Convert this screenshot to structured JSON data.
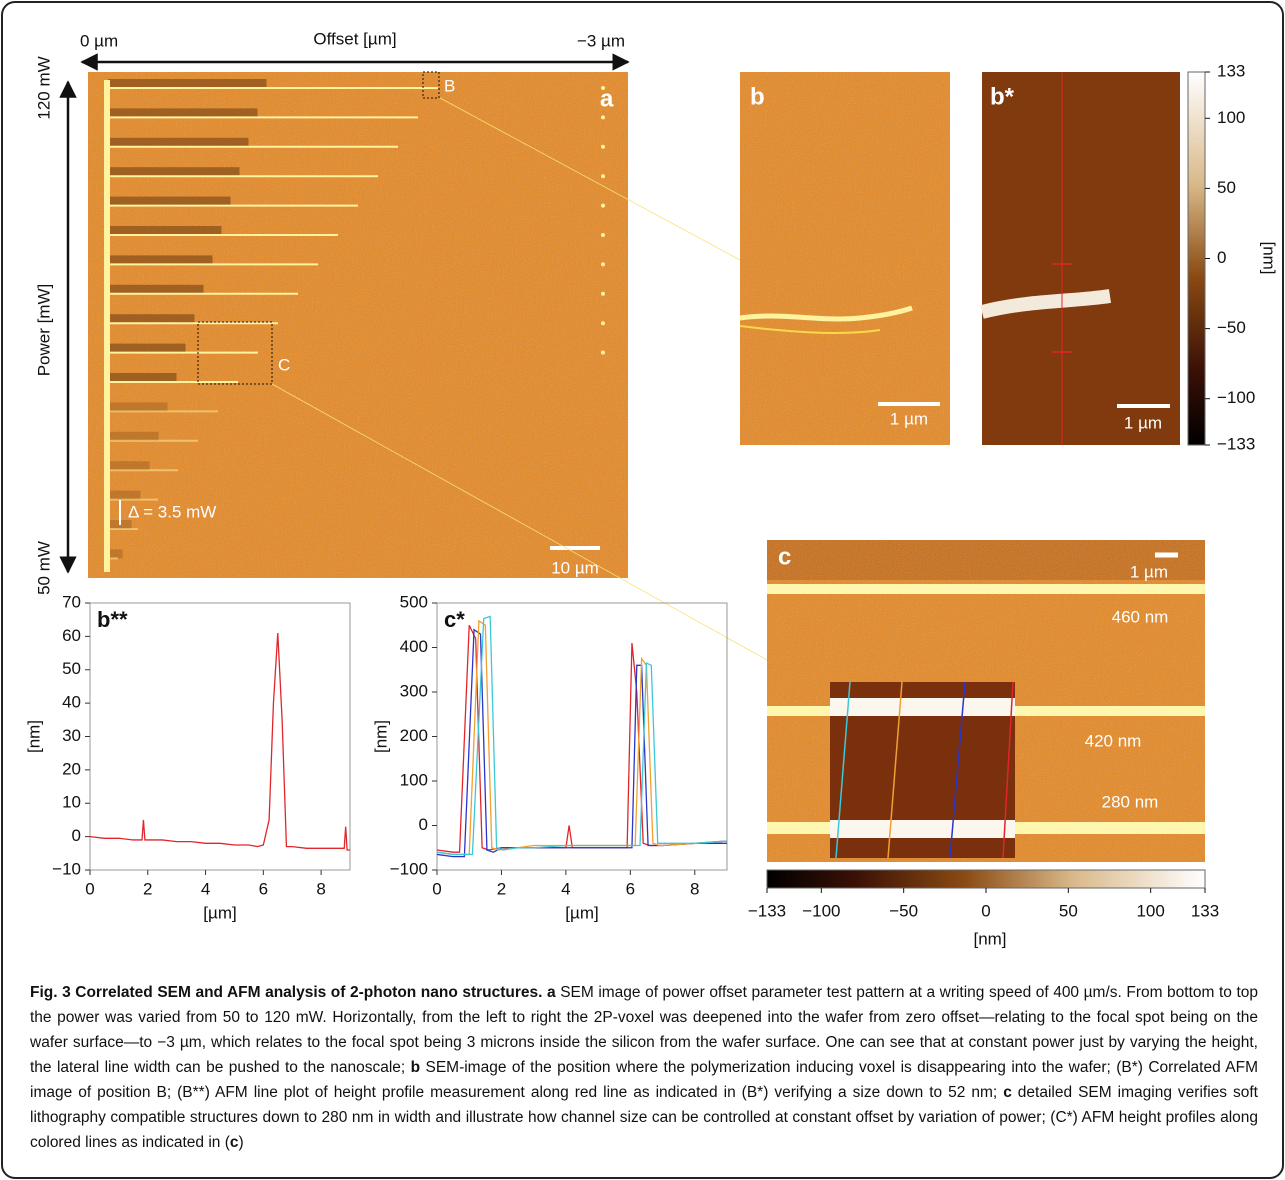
{
  "panel_a": {
    "label": "a",
    "offset_title": "Offset [µm]",
    "offset_start": "0 µm",
    "offset_end": "−3 µm",
    "power_title": "Power [mW]",
    "power_top": "120 mW",
    "power_bottom": "50 mW",
    "delta": "Δ = 3.5 mW",
    "box_b": "B",
    "box_c": "C",
    "scale_bar": "10 µm"
  },
  "panel_b": {
    "label": "b",
    "scale_bar": "1 µm"
  },
  "panel_b_star": {
    "label": "b*",
    "scale_bar": "1 µm",
    "colorbar": {
      "unit": "[nm]",
      "lim": [
        -133,
        133
      ],
      "ticks": [
        133,
        100,
        50,
        0,
        {
          "value": -50,
          "label": "−50"
        },
        {
          "value": -100,
          "label": "−100"
        },
        {
          "value": -133,
          "label": "−133"
        }
      ]
    }
  },
  "panel_c": {
    "label": "c",
    "scale_bar": "1 µm",
    "widths": [
      "460 nm",
      "420 nm",
      "280 nm"
    ],
    "colorbar": {
      "unit": "[nm]",
      "lim": [
        -133,
        133
      ],
      "ticks": [
        {
          "value": -133,
          "label": "−133"
        },
        {
          "value": -100,
          "label": "−100"
        },
        {
          "value": -50,
          "label": "−50"
        },
        0,
        50,
        100,
        133
      ]
    }
  },
  "chart_data": [
    {
      "type": "line",
      "label": "b**",
      "xlabel": "[µm]",
      "ylabel": "[nm]",
      "xlim": [
        0,
        9
      ],
      "ylim": [
        -10,
        70
      ],
      "xticks": [
        0,
        2,
        4,
        6,
        8
      ],
      "yticks": [
        {
          "value": -10,
          "label": "−10"
        },
        0,
        10,
        20,
        30,
        40,
        50,
        60,
        70
      ],
      "series": [
        {
          "color": "#e0262b",
          "x": [
            0,
            0.5,
            1,
            1.5,
            1.8,
            1.85,
            1.9,
            2.5,
            3,
            3.5,
            4,
            4.5,
            5,
            5.5,
            5.8,
            6.0,
            6.2,
            6.35,
            6.5,
            6.65,
            6.8,
            7,
            7.5,
            8,
            8.5,
            8.8,
            8.85,
            8.9,
            9
          ],
          "values": [
            0,
            -0.5,
            -0.5,
            -1,
            -1,
            5,
            -1,
            -1,
            -1.5,
            -1.5,
            -2,
            -2,
            -2.5,
            -2.5,
            -3,
            -2.5,
            5,
            40,
            61,
            35,
            -3,
            -3,
            -3.5,
            -3.5,
            -3.5,
            -3.5,
            3,
            -4,
            -4
          ]
        }
      ]
    },
    {
      "type": "line",
      "label": "c*",
      "xlabel": "[µm]",
      "ylabel": "[nm]",
      "xlim": [
        0,
        9
      ],
      "ylim": [
        -100,
        500
      ],
      "xticks": [
        0,
        2,
        4,
        6,
        8
      ],
      "yticks": [
        {
          "value": -100,
          "label": "−100"
        },
        0,
        100,
        200,
        300,
        400,
        500
      ],
      "series": [
        {
          "color": "#e0262b",
          "x": [
            0,
            0.5,
            0.7,
            1.0,
            1.2,
            1.4,
            1.6,
            2,
            3,
            4,
            4.1,
            4.2,
            5,
            5.9,
            6.05,
            6.2,
            6.4,
            6.6,
            7,
            8,
            9
          ],
          "values": [
            -55,
            -60,
            -60,
            450,
            420,
            -50,
            -55,
            -50,
            -50,
            -50,
            0,
            -50,
            -50,
            -50,
            410,
            300,
            -40,
            -45,
            -45,
            -40,
            -35
          ]
        },
        {
          "color": "#2b35c9",
          "x": [
            0,
            0.5,
            0.85,
            1.15,
            1.35,
            1.55,
            1.75,
            2,
            3,
            4,
            5,
            6.05,
            6.2,
            6.35,
            6.55,
            6.75,
            7,
            8,
            9
          ],
          "values": [
            -65,
            -70,
            -70,
            440,
            430,
            -55,
            -60,
            -50,
            -50,
            -50,
            -50,
            -50,
            360,
            360,
            -45,
            -45,
            -45,
            -40,
            -40
          ]
        },
        {
          "color": "#f0a030",
          "x": [
            0,
            0.5,
            1.0,
            1.3,
            1.5,
            1.7,
            1.9,
            2.5,
            3,
            4,
            5,
            6.15,
            6.35,
            6.5,
            6.7,
            6.9,
            7,
            8,
            9
          ],
          "values": [
            -60,
            -65,
            -65,
            460,
            450,
            -50,
            -55,
            -50,
            -45,
            -45,
            -45,
            -45,
            375,
            360,
            -40,
            -45,
            -45,
            -40,
            -35
          ]
        },
        {
          "color": "#3cc8d8",
          "x": [
            0,
            0.5,
            1.1,
            1.45,
            1.65,
            1.85,
            2.05,
            2.5,
            3,
            4,
            5,
            6.3,
            6.5,
            6.65,
            6.85,
            7.05,
            8,
            9
          ],
          "values": [
            -60,
            -65,
            -65,
            465,
            470,
            -50,
            -55,
            -50,
            -50,
            -45,
            -45,
            -45,
            365,
            360,
            -40,
            -40,
            -40,
            -35
          ]
        }
      ]
    }
  ],
  "caption": [
    {
      "text": "Fig. 3 Correlated SEM and AFM analysis of 2-photon nano structures. a",
      "bold": true
    },
    {
      "text": " SEM image of power offset parameter test pattern at a writing speed of 400 µm/s. From bottom to top the power was varied from 50 to 120 mW. Horizontally, from the left to right the 2P-voxel was deepened into the wafer from zero offset—relating to the focal spot being on the wafer surface—to −3 µm, which relates to the focal spot being 3 microns inside the silicon from the wafer surface. One can see that at constant power just by varying the height, the lateral line width can be pushed to the nanoscale; ",
      "bold": false
    },
    {
      "text": "b",
      "bold": true
    },
    {
      "text": " SEM-image of the position where the polymerization inducing voxel is disappearing into the wafer; (B*) Correlated AFM image of position B; (B**) AFM line plot of height profile measurement along red line as indicated in (B*) verifying a size down to 52 nm; ",
      "bold": false
    },
    {
      "text": "c",
      "bold": true
    },
    {
      "text": " detailed SEM imaging verifies soft lithography compatible structures down to 280 nm in width and illustrate how channel size can be controlled at constant offset by variation of power; (C*) AFM height profiles along colored lines as indicated in (",
      "bold": false
    },
    {
      "text": "c",
      "bold": true
    },
    {
      "text": ")",
      "bold": false
    }
  ]
}
